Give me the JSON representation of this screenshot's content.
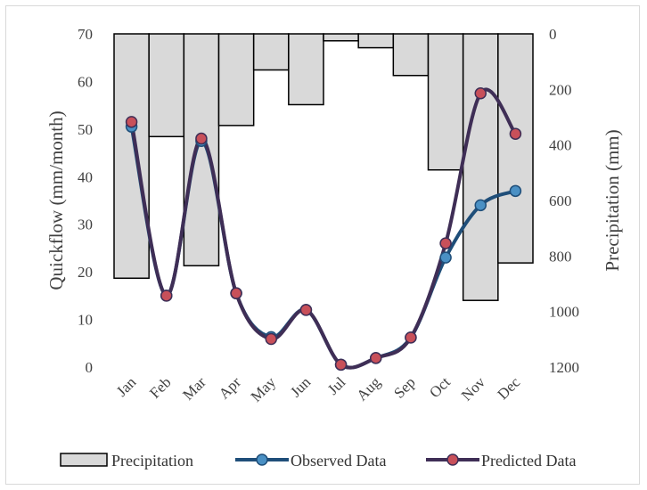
{
  "chart_data": {
    "type": "bar-line-combo",
    "categories": [
      "Jan",
      "Feb",
      "Mar",
      "Apr",
      "May",
      "Jun",
      "Jul",
      "Aug",
      "Sep",
      "Oct",
      "Nov",
      "Dec"
    ],
    "series": [
      {
        "name": "Precipitation",
        "type": "bar",
        "axis": "right",
        "values": [
          880,
          370,
          835,
          330,
          130,
          255,
          25,
          50,
          150,
          490,
          960,
          825
        ]
      },
      {
        "name": "Observed Data",
        "type": "line",
        "axis": "left",
        "values": [
          50.5,
          15,
          47.5,
          15.5,
          6.3,
          12,
          0.5,
          1.9,
          6.2,
          23,
          34,
          37
        ]
      },
      {
        "name": "Predicted Data",
        "type": "line",
        "axis": "left",
        "values": [
          51.5,
          15,
          48,
          15.5,
          5.9,
          12,
          0.5,
          1.9,
          6.2,
          26,
          57.5,
          49
        ]
      }
    ],
    "ylabel": "Quickflow (mm/month)",
    "y2label": "Precipitation (mm)",
    "ylim": [
      0,
      70
    ],
    "yticks": [
      "0",
      "10",
      "20",
      "30",
      "40",
      "50",
      "60",
      "70"
    ],
    "y2lim": [
      0,
      1200
    ],
    "y2ticks": [
      "0",
      "200",
      "400",
      "600",
      "800",
      "1000",
      "1200"
    ],
    "y2_inverted": true,
    "legend_position": "bottom",
    "colors": {
      "bar_fill": "#d9d9d9",
      "bar_stroke": "#000000",
      "observed_line": "#1f4e79",
      "observed_marker": "#4a90c4",
      "predicted_line": "#3f2e56",
      "predicted_marker": "#c8505a"
    }
  }
}
